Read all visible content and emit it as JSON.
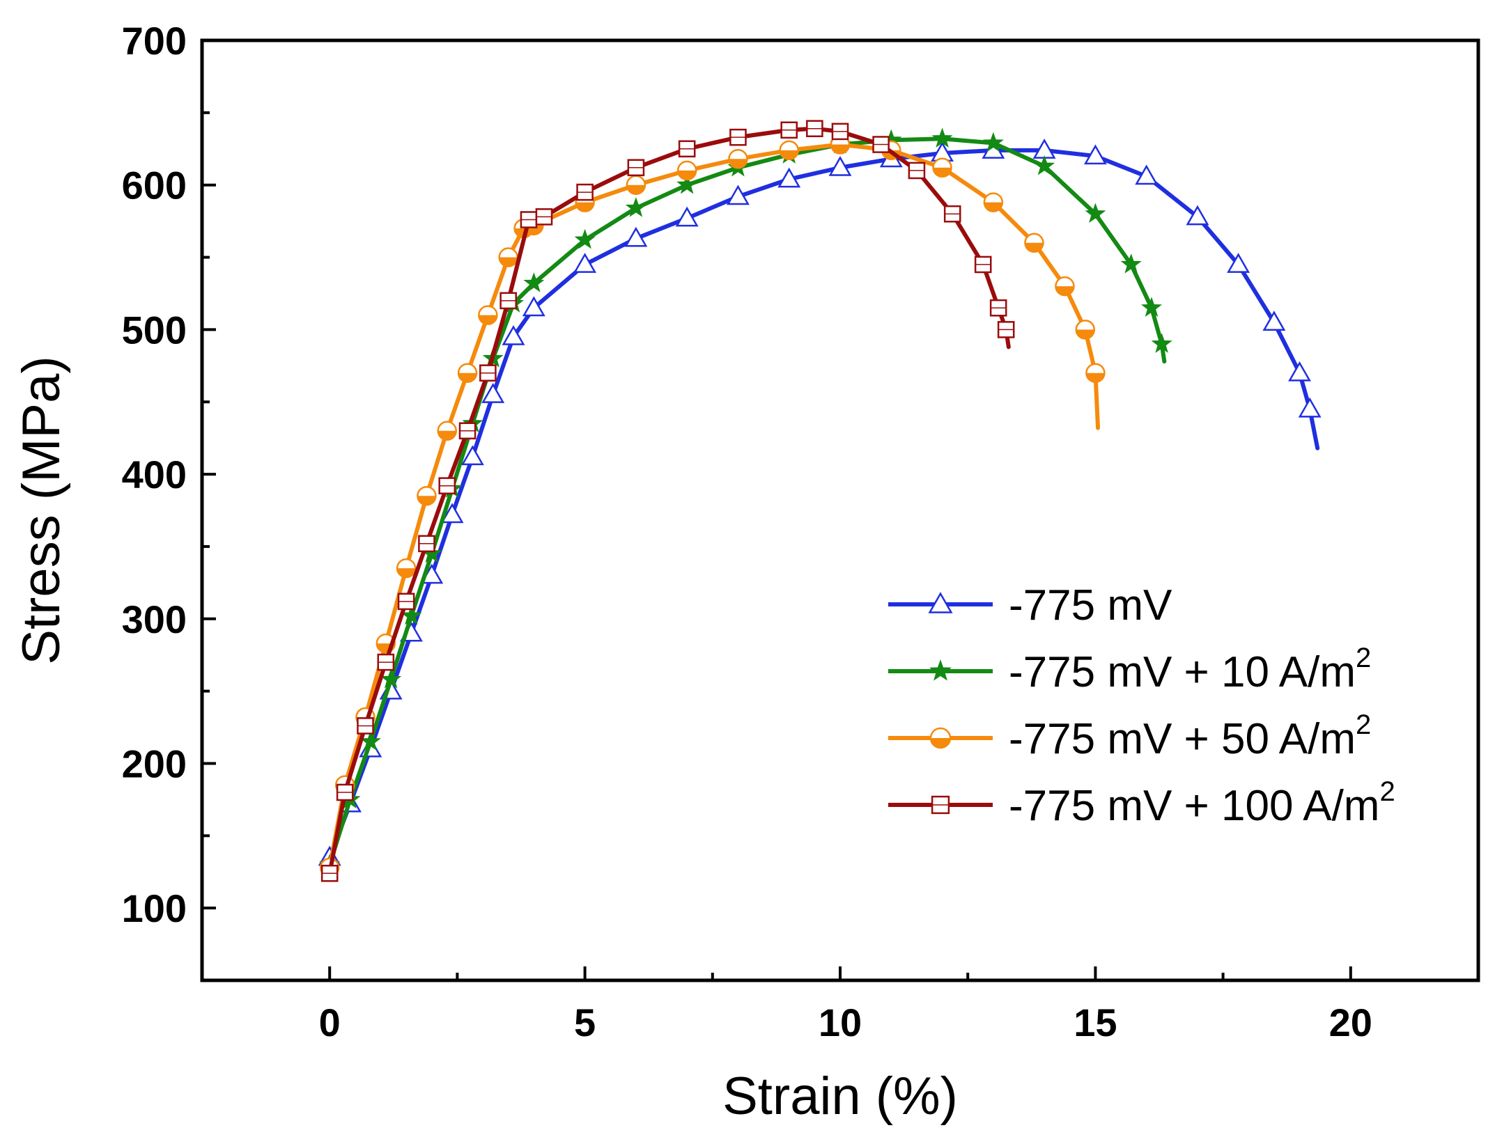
{
  "chart_data": {
    "type": "line",
    "title": "",
    "xlabel": "Strain (%)",
    "ylabel": "Stress (MPa)",
    "xlim": [
      -2.5,
      22.5
    ],
    "ylim": [
      50,
      700
    ],
    "xticks": [
      0,
      5,
      10,
      15,
      20
    ],
    "xtick_labels": [
      "0",
      "5",
      "10",
      "15",
      "20"
    ],
    "yticks": [
      100,
      200,
      300,
      400,
      500,
      600,
      700
    ],
    "ytick_labels": [
      "100",
      "200",
      "300",
      "400",
      "500",
      "600",
      "700"
    ],
    "legend_position": "center-right",
    "series": [
      {
        "name": "-775 mV",
        "label_main": "-775 mV",
        "label_sup": "",
        "color": "#1f2fe0",
        "marker": "triangle-open",
        "x": [
          0,
          0.4,
          0.8,
          1.2,
          1.6,
          2.0,
          2.4,
          2.8,
          3.2,
          3.6,
          4.0,
          5.0,
          6.0,
          7.0,
          8.0,
          9.0,
          10.0,
          11.0,
          12.0,
          13.0,
          14.0,
          15.0,
          16.0,
          17.0,
          17.8,
          18.5,
          19.0,
          19.2,
          19.35
        ],
        "y": [
          135,
          172,
          210,
          250,
          290,
          330,
          372,
          412,
          455,
          495,
          515,
          545,
          563,
          577,
          592,
          604,
          612,
          618,
          622,
          624,
          624,
          620,
          606,
          578,
          545,
          505,
          470,
          445,
          418
        ]
      },
      {
        "name": "-775 mV + 10 A/m2",
        "label_main": "-775 mV + 10 A/m",
        "label_sup": "2",
        "color": "#138a13",
        "marker": "star-filled",
        "x": [
          0,
          0.4,
          0.8,
          1.2,
          1.6,
          2.0,
          2.4,
          2.8,
          3.2,
          3.6,
          4.0,
          5.0,
          6.0,
          7.0,
          8.0,
          9.0,
          10.0,
          11.0,
          12.0,
          13.0,
          14.0,
          15.0,
          15.7,
          16.1,
          16.3,
          16.35
        ],
        "y": [
          130,
          175,
          215,
          258,
          302,
          345,
          390,
          435,
          480,
          518,
          532,
          562,
          584,
          600,
          612,
          621,
          628,
          631,
          632,
          629,
          613,
          580,
          545,
          515,
          490,
          478
        ]
      },
      {
        "name": "-775 mV + 50 A/m2",
        "label_main": "-775 mV + 50 A/m",
        "label_sup": "2",
        "color": "#f58a0c",
        "marker": "circle-half",
        "x": [
          0,
          0.3,
          0.7,
          1.1,
          1.5,
          1.9,
          2.3,
          2.7,
          3.1,
          3.5,
          3.8,
          4.0,
          5.0,
          6.0,
          7.0,
          8.0,
          9.0,
          10.0,
          11.0,
          12.0,
          13.0,
          13.8,
          14.4,
          14.8,
          15.0,
          15.05
        ],
        "y": [
          128,
          185,
          232,
          283,
          335,
          385,
          430,
          470,
          510,
          550,
          570,
          572,
          588,
          600,
          610,
          618,
          624,
          628,
          624,
          612,
          588,
          560,
          530,
          500,
          470,
          432
        ]
      },
      {
        "name": "-775 mV + 100 A/m2",
        "label_main": "-775 mV + 100 A/m",
        "label_sup": "2",
        "color": "#9a0c0c",
        "marker": "square-open",
        "x": [
          0,
          0.3,
          0.7,
          1.1,
          1.5,
          1.9,
          2.3,
          2.7,
          3.1,
          3.5,
          3.9,
          4.2,
          5.0,
          6.0,
          7.0,
          8.0,
          9.0,
          9.5,
          10.0,
          10.8,
          11.5,
          12.2,
          12.8,
          13.1,
          13.25,
          13.3
        ],
        "y": [
          124,
          180,
          226,
          270,
          312,
          352,
          392,
          430,
          470,
          520,
          576,
          578,
          595,
          612,
          625,
          633,
          638,
          639,
          637,
          628,
          610,
          580,
          545,
          515,
          500,
          488
        ]
      }
    ]
  }
}
